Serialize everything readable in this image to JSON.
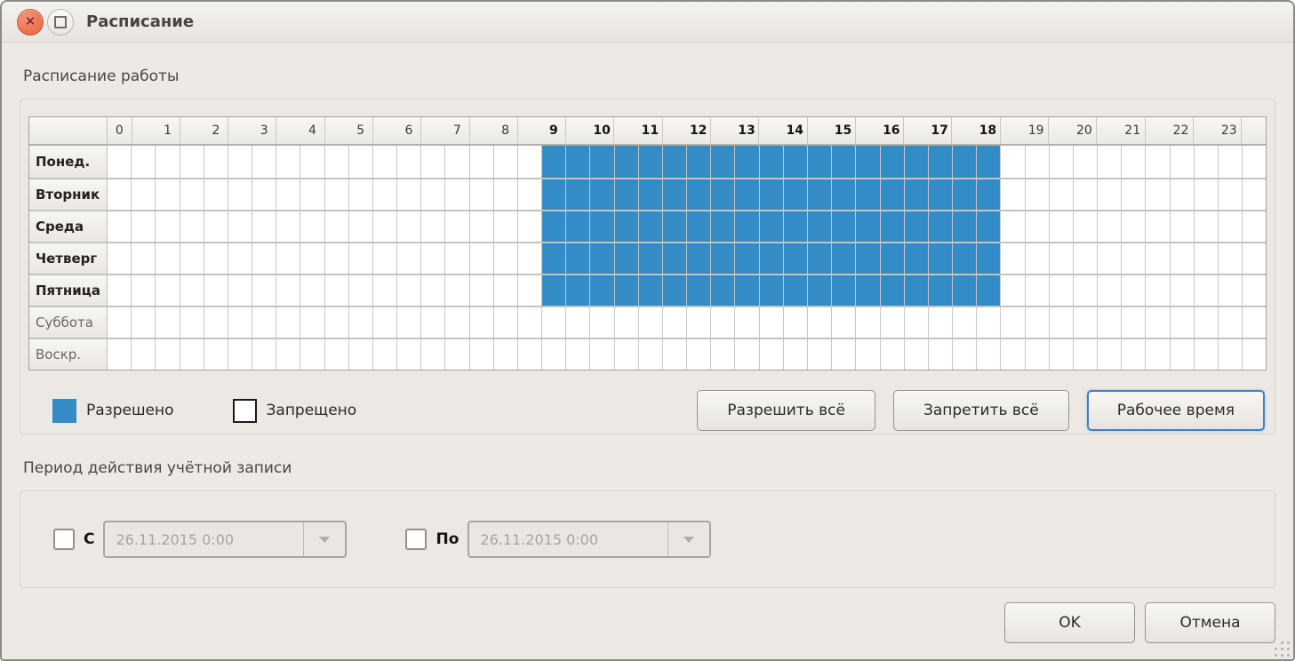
{
  "window": {
    "title": "Расписание"
  },
  "schedule_section": {
    "title": "Расписание работы",
    "grid": {
      "hours": [
        "0",
        "1",
        "2",
        "3",
        "4",
        "5",
        "6",
        "7",
        "8",
        "9",
        "10",
        "11",
        "12",
        "13",
        "14",
        "15",
        "16",
        "17",
        "18",
        "19",
        "20",
        "21",
        "22",
        "23"
      ],
      "bold_hour_from": 9,
      "bold_hour_to": 18,
      "cells_per_hour": 2,
      "allowed_color": "#338CC6",
      "days": [
        {
          "label": "Понед.",
          "weekday": true,
          "allowed": [
            {
              "from": "9:00",
              "to": "18:30"
            }
          ]
        },
        {
          "label": "Вторник",
          "weekday": true,
          "allowed": [
            {
              "from": "9:00",
              "to": "18:30"
            }
          ]
        },
        {
          "label": "Среда",
          "weekday": true,
          "allowed": [
            {
              "from": "9:00",
              "to": "18:30"
            }
          ]
        },
        {
          "label": "Четверг",
          "weekday": true,
          "allowed": [
            {
              "from": "9:00",
              "to": "18:30"
            }
          ]
        },
        {
          "label": "Пятница",
          "weekday": true,
          "allowed": [
            {
              "from": "9:00",
              "to": "18:30"
            }
          ]
        },
        {
          "label": "Суббота",
          "weekday": false,
          "allowed": []
        },
        {
          "label": "Воскр.",
          "weekday": false,
          "allowed": []
        }
      ]
    },
    "legend": {
      "allowed_label": "Разрешено",
      "forbidden_label": "Запрещено",
      "allowed_color": "#338CC6",
      "forbidden_color": "#FFFFFF"
    },
    "buttons": {
      "allow_all": "Разрешить всё",
      "forbid_all": "Запретить всё",
      "working_time": "Рабочее время"
    }
  },
  "validity_section": {
    "title": "Период действия учётной записи",
    "from": {
      "label": "С",
      "checked": false,
      "value": "26.11.2015 0:00"
    },
    "to": {
      "label": "По",
      "checked": false,
      "value": "26.11.2015 0:00"
    }
  },
  "footer": {
    "ok_label": "OK",
    "cancel_label": "Отмена"
  }
}
